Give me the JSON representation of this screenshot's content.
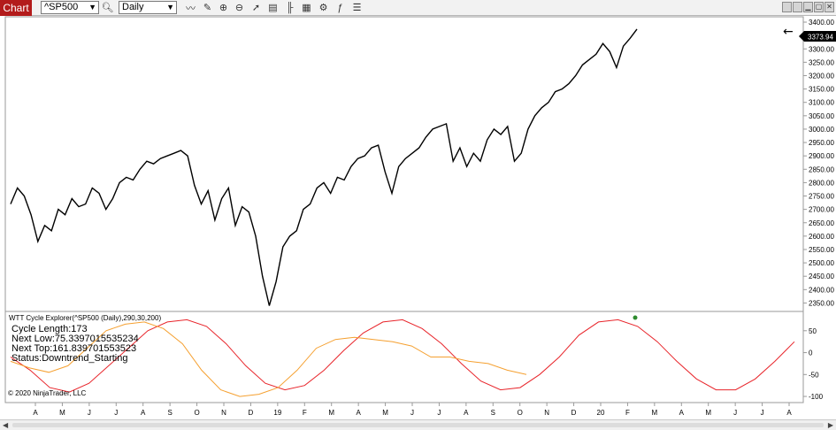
{
  "toolbar": {
    "tab_label": "Chart",
    "instrument": "^SP500",
    "interval": "Daily",
    "icons": [
      "line-tool-icon",
      "draw-icon",
      "zoom-in-icon",
      "zoom-out-icon",
      "pointer-icon",
      "data-box-icon",
      "bar-style-icon",
      "chart-properties-icon",
      "strategies-icon",
      "indicators-icon",
      "list-icon"
    ],
    "window_buttons": [
      "tile-icon",
      "tile-icon",
      "minimize-icon",
      "maximize-icon",
      "close-icon"
    ]
  },
  "indicator": {
    "title": "WTT Cycle Explorer(^SP500 (Daily),290,30,200)",
    "cycle_length": "Cycle Length:173",
    "next_low": "Next Low:75.3397015535234",
    "next_top": "Next Top:161.839701553523",
    "status": "Status:Downtrend_Starting"
  },
  "copyright": "© 2020 NinjaTrader, LLC",
  "colors": {
    "price_line": "#000000",
    "cycle_line": "#e8242a",
    "dominant_line": "#f5a030",
    "marker": "#2e8b2e",
    "last_price_bg": "#000000"
  },
  "chart_data": [
    {
      "type": "line",
      "series": [
        {
          "values": [
            2720,
            2780,
            2750,
            2680,
            2580,
            2640,
            2620,
            2700,
            2680,
            2740,
            2710,
            2720,
            2780,
            2760,
            2700,
            2740,
            2800,
            2820,
            2810,
            2850,
            2880,
            2870,
            2890,
            2900,
            2910,
            2920,
            2900,
            2790,
            2720,
            2770,
            2660,
            2740,
            2780,
            2640,
            2710,
            2690,
            2600,
            2450,
            2340,
            2430,
            2560,
            2600,
            2620,
            2700,
            2720,
            2780,
            2800,
            2760,
            2820,
            2810,
            2860,
            2890,
            2900,
            2930,
            2940,
            2840,
            2760,
            2860,
            2890,
            2910,
            2930,
            2970,
            3000,
            3010,
            3020,
            2880,
            2930,
            2860,
            2910,
            2880,
            2960,
            3000,
            2980,
            3010,
            2880,
            2910,
            3000,
            3050,
            3080,
            3100,
            3140,
            3150,
            3170,
            3200,
            3240,
            3260,
            3280,
            3320,
            3290,
            3230,
            3310,
            3340,
            3374
          ]
        }
      ],
      "y_ticks": [
        "3400.00",
        "3350.00",
        "3300.00",
        "3250.00",
        "3200.00",
        "3150.00",
        "3100.00",
        "3050.00",
        "3000.00",
        "2950.00",
        "2900.00",
        "2850.00",
        "2800.00",
        "2750.00",
        "2700.00",
        "2650.00",
        "2600.00",
        "2550.00",
        "2500.00",
        "2450.00",
        "2400.00",
        "2350.00"
      ],
      "ylim": [
        2325,
        3410
      ],
      "last_price_label": "3373.94"
    },
    {
      "type": "line",
      "series": [
        {
          "values": [
            -10,
            -40,
            -80,
            -90,
            -70,
            -30,
            10,
            50,
            70,
            75,
            60,
            20,
            -30,
            -70,
            -85,
            -75,
            -40,
            5,
            45,
            70,
            75,
            55,
            20,
            -25,
            -65,
            -85,
            -80,
            -50,
            -10,
            40,
            70,
            75,
            60,
            25,
            -20,
            -60,
            -85,
            -85,
            -60,
            -20,
            25
          ]
        },
        {
          "values": [
            -20,
            -35,
            -45,
            -30,
            10,
            50,
            65,
            70,
            55,
            20,
            -40,
            -85,
            -100,
            -95,
            -80,
            -40,
            10,
            30,
            35,
            30,
            25,
            15,
            -10,
            -10,
            -20,
            -25,
            -40,
            -50
          ]
        }
      ],
      "y_ticks": [
        "50",
        "0",
        "-50",
        "-100"
      ],
      "ylim": [
        -110,
        90
      ]
    }
  ],
  "x_axis": {
    "labels": [
      "A",
      "M",
      "J",
      "J",
      "A",
      "S",
      "O",
      "N",
      "D",
      "19",
      "F",
      "M",
      "A",
      "M",
      "J",
      "J",
      "A",
      "S",
      "O",
      "N",
      "D",
      "20",
      "F",
      "M",
      "A",
      "M",
      "J",
      "J",
      "A"
    ]
  }
}
